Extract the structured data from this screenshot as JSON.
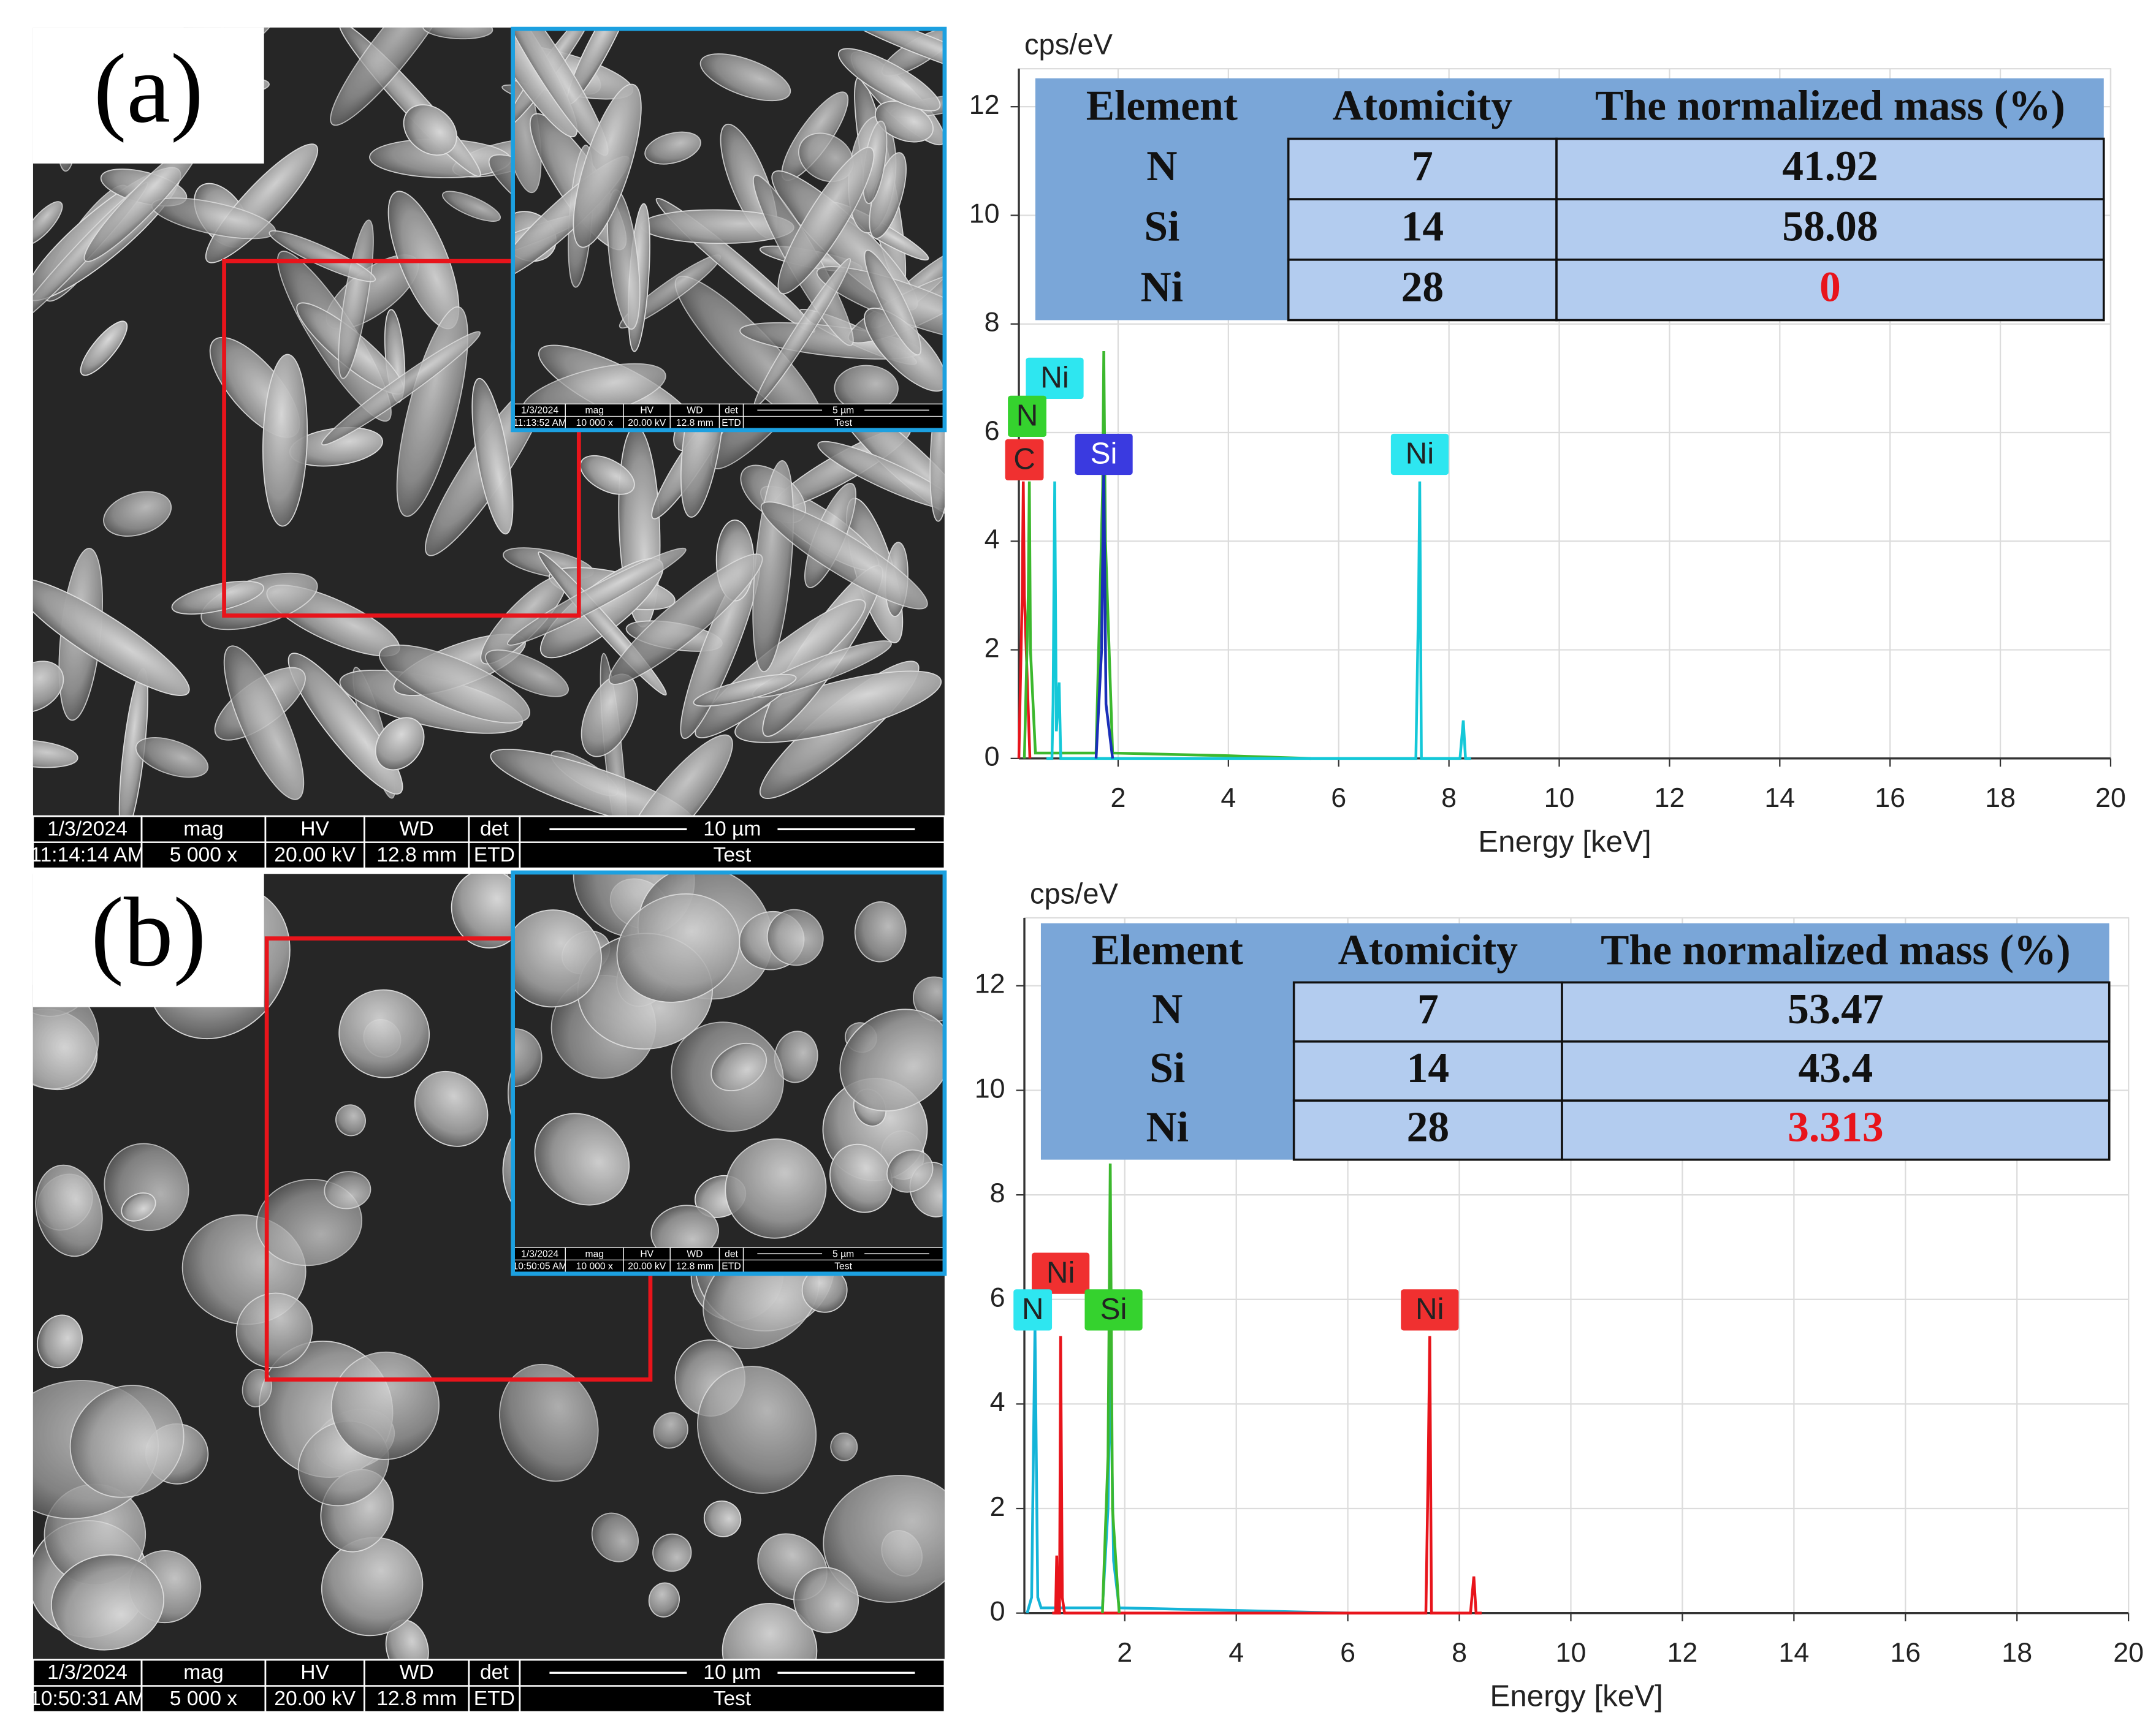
{
  "panels": [
    {
      "label": "(a)",
      "sem": {
        "date": "1/3/2024",
        "time": "11:14:14 AM",
        "mag_label": "mag",
        "mag": "5 000 x",
        "hv_label": "HV",
        "hv": "20.00 kV",
        "wd_label": "WD",
        "wd": "12.8 mm",
        "det_label": "det",
        "det": "ETD",
        "scale": "10 µm",
        "name": "Test"
      },
      "inset_sem": {
        "date": "1/3/2024",
        "time": "11:13:52 AM",
        "mag_label": "mag",
        "mag": "10 000 x",
        "hv_label": "HV",
        "hv": "20.00 kV",
        "wd_label": "WD",
        "wd": "12.8 mm",
        "det_label": "det",
        "det": "ETD",
        "scale": "5 µm",
        "name": "Test"
      }
    },
    {
      "label": "(b)",
      "sem": {
        "date": "1/3/2024",
        "time": "10:50:31 AM",
        "mag_label": "mag",
        "mag": "5 000 x",
        "hv_label": "HV",
        "hv": "20.00 kV",
        "wd_label": "WD",
        "wd": "12.8 mm",
        "det_label": "det",
        "det": "ETD",
        "scale": "10 µm",
        "name": "Test"
      },
      "inset_sem": {
        "date": "1/3/2024",
        "time": "10:50:05 AM",
        "mag_label": "mag",
        "mag": "10 000 x",
        "hv_label": "HV",
        "hv": "20.00 kV",
        "wd_label": "WD",
        "wd": "12.8 mm",
        "det_label": "det",
        "det": "ETD",
        "scale": "5 µm",
        "name": "Test"
      }
    }
  ],
  "chart_data": [
    {
      "type": "line",
      "y_unit": "cps/eV",
      "x_label": "Energy [keV]",
      "xlim": [
        0.2,
        20
      ],
      "xticks": [
        2,
        4,
        6,
        8,
        10,
        12,
        14,
        16,
        18,
        20
      ],
      "ylim": [
        0,
        12.7
      ],
      "yticks": [
        0,
        2,
        4,
        6,
        8,
        10,
        12
      ],
      "grid": true,
      "series": [
        {
          "name": "C",
          "color": "#e8141b",
          "x": [
            0.2,
            0.26,
            0.28,
            0.3,
            0.4
          ],
          "values": [
            0,
            3,
            5.1,
            3,
            0
          ]
        },
        {
          "name": "N",
          "color": "#3cb82e",
          "x": [
            0.3,
            0.37,
            0.39,
            0.41,
            0.5,
            1.6,
            1.72,
            1.74,
            1.77,
            1.9,
            4,
            5.5
          ],
          "values": [
            0,
            3,
            5.1,
            2,
            0.1,
            0.1,
            5,
            7.5,
            4,
            0.1,
            0.05,
            0
          ]
        },
        {
          "name": "Ni",
          "color": "#14c8d8",
          "x": [
            0.7,
            0.8,
            0.82,
            0.85,
            0.88,
            0.93,
            0.96,
            1.0,
            7.4,
            7.45,
            7.47,
            7.5,
            7.6,
            8.2,
            8.26,
            8.3,
            8.4
          ],
          "values": [
            0,
            0,
            1,
            5.1,
            0.5,
            1.4,
            0,
            0,
            0,
            3,
            5.1,
            0,
            0,
            0,
            0.7,
            0,
            0
          ]
        },
        {
          "name": "Si",
          "color": "#1a2fb8",
          "x": [
            1.6,
            1.7,
            1.74,
            1.78,
            1.9
          ],
          "values": [
            0,
            2,
            5.3,
            1,
            0
          ]
        }
      ],
      "annotations": [
        {
          "text": "Ni",
          "x": 0.85,
          "y": 7,
          "color": "#2ee6f0",
          "text_color": "#222"
        },
        {
          "text": "N",
          "x": 0.35,
          "y": 6.3,
          "color": "#35d22e",
          "text_color": "#222"
        },
        {
          "text": "C",
          "x": 0.3,
          "y": 5.5,
          "color": "#f03030",
          "text_color": "#222"
        },
        {
          "text": "Si",
          "x": 1.74,
          "y": 5.6,
          "color": "#3a3ae0",
          "text_color": "#fff"
        },
        {
          "text": "Ni",
          "x": 7.47,
          "y": 5.6,
          "color": "#2ee6f0",
          "text_color": "#222"
        }
      ],
      "table": {
        "columns": [
          "Element",
          "Atomicity",
          "The normalized mass (%)"
        ],
        "rows": [
          [
            "N",
            7,
            41.92
          ],
          [
            "Si",
            14,
            58.08
          ],
          [
            "Ni",
            28,
            0
          ]
        ],
        "highlight": {
          "row": 2,
          "column": 2,
          "color": "#e8141b"
        }
      }
    },
    {
      "type": "line",
      "y_unit": "cps/eV",
      "x_label": "Energy [keV]",
      "xlim": [
        0.2,
        20
      ],
      "xticks": [
        2,
        4,
        6,
        8,
        10,
        12,
        14,
        16,
        18,
        20
      ],
      "ylim": [
        0,
        13.3
      ],
      "yticks": [
        0,
        2,
        4,
        6,
        8,
        10,
        12
      ],
      "grid": true,
      "series": [
        {
          "name": "N",
          "color": "#14b4d8",
          "x": [
            0.25,
            0.33,
            0.39,
            0.44,
            0.5,
            1.6,
            1.7,
            1.74,
            1.8,
            1.9,
            4,
            6
          ],
          "values": [
            0,
            0.3,
            5.5,
            0.3,
            0.1,
            0.1,
            2,
            5,
            1,
            0.1,
            0.05,
            0
          ]
        },
        {
          "name": "Ni",
          "color": "#e8141b",
          "x": [
            0.7,
            0.76,
            0.78,
            0.8,
            0.83,
            0.85,
            0.88,
            0.92,
            7.4,
            7.44,
            7.47,
            7.5,
            7.6,
            8.2,
            8.26,
            8.3,
            8.4
          ],
          "values": [
            0,
            0,
            1.1,
            0,
            0,
            5.3,
            0.3,
            0,
            0,
            2.7,
            5.3,
            0,
            0,
            0,
            0.7,
            0,
            0
          ]
        },
        {
          "name": "Si",
          "color": "#3cb82e",
          "x": [
            1.6,
            1.7,
            1.74,
            1.78,
            1.9
          ],
          "values": [
            0,
            3,
            8.6,
            2,
            0
          ]
        }
      ],
      "annotations": [
        {
          "text": "Ni",
          "x": 0.85,
          "y": 6.5,
          "color": "#f03030",
          "text_color": "#222"
        },
        {
          "text": "N",
          "x": 0.35,
          "y": 5.8,
          "color": "#2ee6f0",
          "text_color": "#222"
        },
        {
          "text": "Si",
          "x": 1.8,
          "y": 5.8,
          "color": "#35d22e",
          "text_color": "#222"
        },
        {
          "text": "Ni",
          "x": 7.47,
          "y": 5.8,
          "color": "#f03030",
          "text_color": "#222"
        }
      ],
      "table": {
        "columns": [
          "Element",
          "Atomicity",
          "The normalized mass (%)"
        ],
        "rows": [
          [
            "N",
            7,
            53.47
          ],
          [
            "Si",
            14,
            43.4
          ],
          [
            "Ni",
            28,
            3.313
          ]
        ],
        "highlight": {
          "row": 2,
          "column": 2,
          "color": "#e8141b"
        }
      }
    }
  ]
}
